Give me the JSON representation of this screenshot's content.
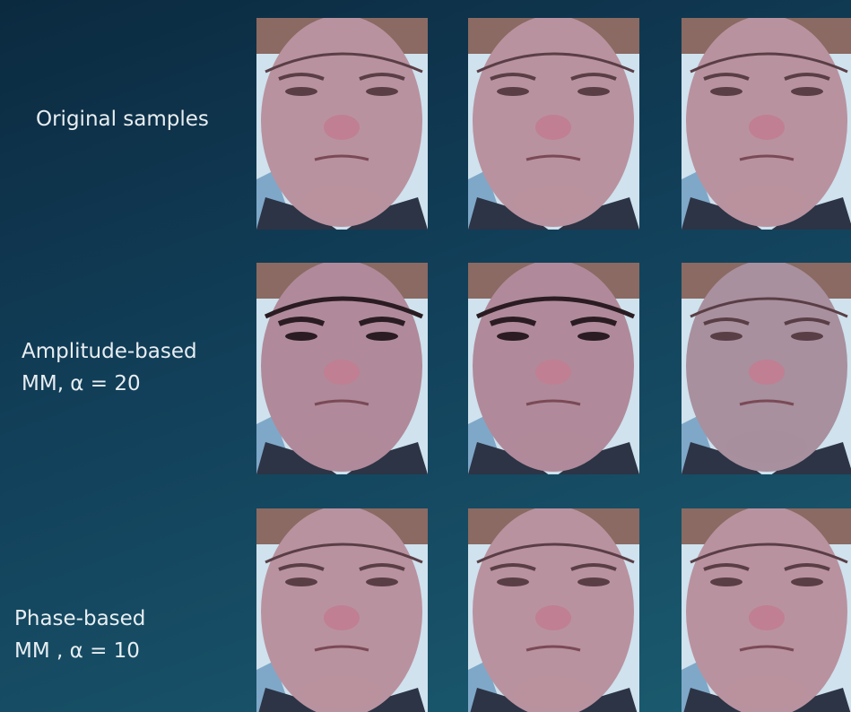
{
  "rows": [
    {
      "label_lines": [
        "Original samples"
      ]
    },
    {
      "label_lines": [
        "Amplitude-based",
        "MM, α = 20"
      ]
    },
    {
      "label_lines": [
        "Phase-based",
        "MM , α = 10"
      ]
    }
  ]
}
